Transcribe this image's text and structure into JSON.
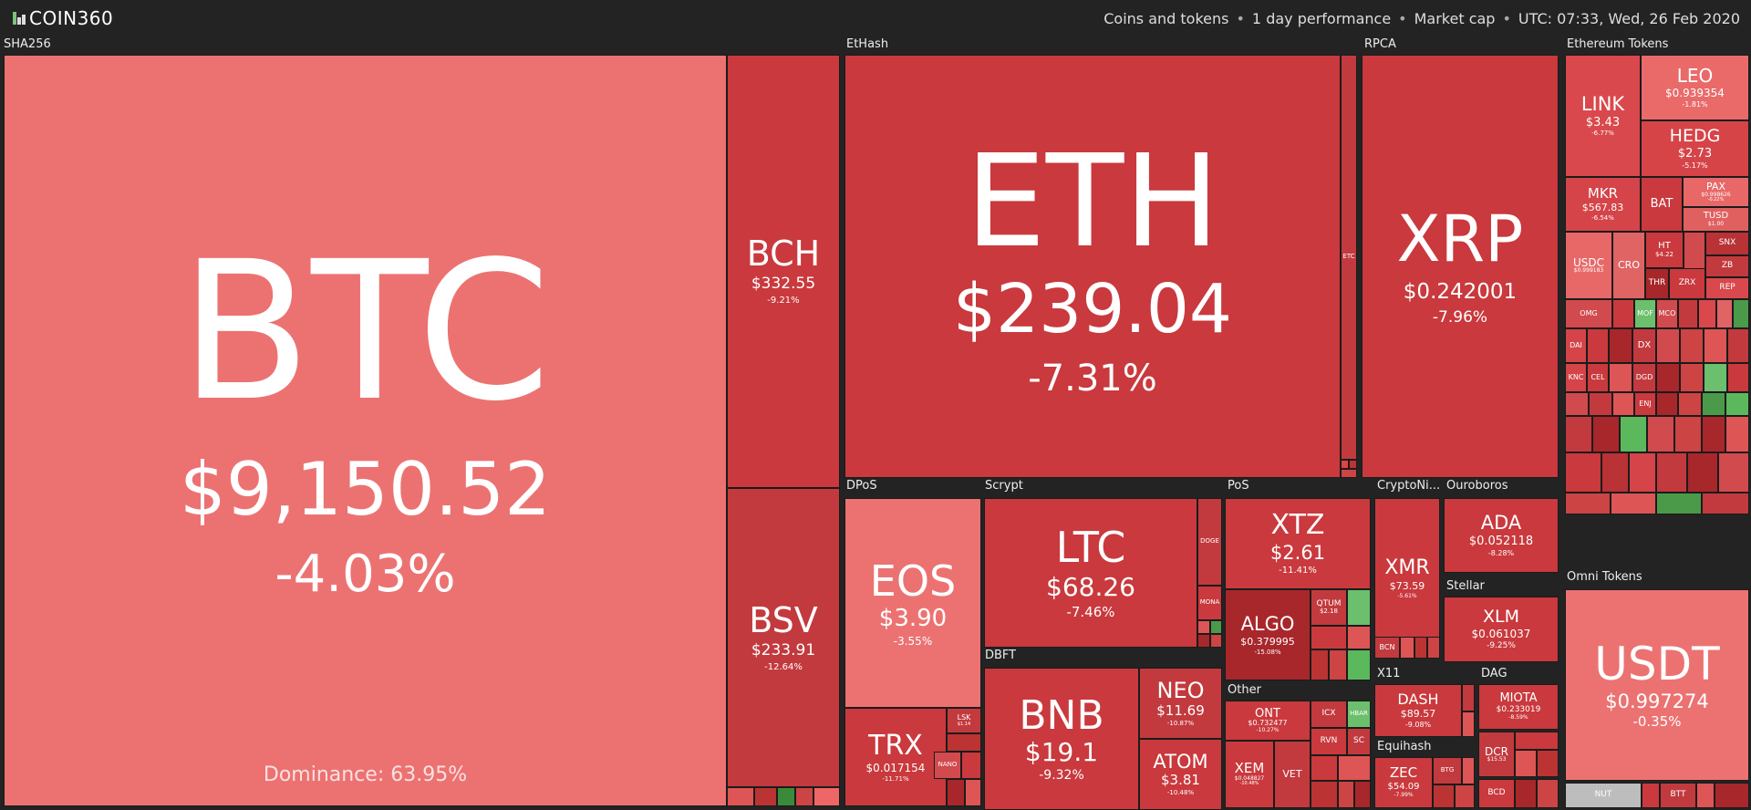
{
  "header": {
    "logo_text": "COIN360",
    "filter_coins": "Coins and tokens",
    "filter_period": "1 day performance",
    "filter_metric": "Market cap",
    "timestamp": "UTC: 07:33, Wed, 26 Feb 2020"
  },
  "sectors": {
    "sha256": "SHA256",
    "ethash": "EtHash",
    "rpca": "RPCA",
    "ethereum_tokens": "Ethereum Tokens",
    "dpos": "DPoS",
    "scrypt": "Scrypt",
    "pos": "PoS",
    "cryptonight": "CryptoNi...",
    "ouroboros": "Ouroboros",
    "stellar": "Stellar",
    "dbft": "DBFT",
    "other": "Other",
    "x11": "X11",
    "dag": "DAG",
    "equihash": "Equihash",
    "omni_tokens": "Omni Tokens"
  },
  "colors": {
    "bg": "#232323",
    "red_light": "#ec7272",
    "red_mid": "#d9484c",
    "red_dark": "#c23a3e",
    "red_deep": "#a8272b",
    "green": "#5cb85c"
  },
  "coins": {
    "btc": {
      "symbol": "BTC",
      "price": "$9,150.52",
      "change": "-4.03%",
      "dominance": "Dominance: 63.95%"
    },
    "bch": {
      "symbol": "BCH",
      "price": "$332.55",
      "change": "-9.21%"
    },
    "bsv": {
      "symbol": "BSV",
      "price": "$233.91",
      "change": "-12.64%"
    },
    "eth": {
      "symbol": "ETH",
      "price": "$239.04",
      "change": "-7.31%"
    },
    "etc": {
      "symbol": "ETC"
    },
    "xrp": {
      "symbol": "XRP",
      "price": "$0.242001",
      "change": "-7.96%"
    },
    "link": {
      "symbol": "LINK",
      "price": "$3.43",
      "change": "-6.77%"
    },
    "leo": {
      "symbol": "LEO",
      "price": "$0.939354",
      "change": "-1.81%"
    },
    "hedg": {
      "symbol": "HEDG",
      "price": "$2.73",
      "change": "-5.17%"
    },
    "mkr": {
      "symbol": "MKR",
      "price": "$567.83",
      "change": "-6.54%"
    },
    "bat": {
      "symbol": "BAT"
    },
    "pax": {
      "symbol": "PAX",
      "price": "$0.998626",
      "change": "-0.22%"
    },
    "tusd": {
      "symbol": "TUSD",
      "price": "$1.00"
    },
    "usdc": {
      "symbol": "USDC",
      "price": "$0.999183"
    },
    "cro": {
      "symbol": "CRO"
    },
    "ht": {
      "symbol": "HT",
      "price": "$4.22"
    },
    "snx": {
      "symbol": "SNX"
    },
    "zb": {
      "symbol": "ZB"
    },
    "thr": {
      "symbol": "THR"
    },
    "zrx": {
      "symbol": "ZRX"
    },
    "rep": {
      "symbol": "REP"
    },
    "omg": {
      "symbol": "OMG"
    },
    "mof": {
      "symbol": "MOF"
    },
    "mco": {
      "symbol": "MCO"
    },
    "dai": {
      "symbol": "DAI"
    },
    "dx": {
      "symbol": "DX"
    },
    "knc": {
      "symbol": "KNC"
    },
    "cel": {
      "symbol": "CEL"
    },
    "dgd": {
      "symbol": "DGD"
    },
    "enj": {
      "symbol": "ENJ"
    },
    "eos": {
      "symbol": "EOS",
      "price": "$3.90",
      "change": "-3.55%"
    },
    "trx": {
      "symbol": "TRX",
      "price": "$0.017154",
      "change": "-11.71%"
    },
    "lsk": {
      "symbol": "LSK",
      "price": "$1.14"
    },
    "nano": {
      "symbol": "NANO"
    },
    "ltc": {
      "symbol": "LTC",
      "price": "$68.26",
      "change": "-7.46%"
    },
    "doge": {
      "symbol": "DOGE"
    },
    "mona": {
      "symbol": "MONA"
    },
    "xtz": {
      "symbol": "XTZ",
      "price": "$2.61",
      "change": "-11.41%"
    },
    "algo": {
      "symbol": "ALGO",
      "price": "$0.379995",
      "change": "-15.08%"
    },
    "qtum": {
      "symbol": "QTUM",
      "price": "$2.18"
    },
    "xmr": {
      "symbol": "XMR",
      "price": "$73.59",
      "change": "-5.61%"
    },
    "bcn": {
      "symbol": "BCN"
    },
    "ada": {
      "symbol": "ADA",
      "price": "$0.052118",
      "change": "-8.28%"
    },
    "xlm": {
      "symbol": "XLM",
      "price": "$0.061037",
      "change": "-9.25%"
    },
    "bnb": {
      "symbol": "BNB",
      "price": "$19.1",
      "change": "-9.32%"
    },
    "neo": {
      "symbol": "NEO",
      "price": "$11.69",
      "change": "-10.87%"
    },
    "atom": {
      "symbol": "ATOM",
      "price": "$3.81",
      "change": "-10.48%"
    },
    "ont": {
      "symbol": "ONT",
      "price": "$0.732477",
      "change": "-10.27%"
    },
    "icx": {
      "symbol": "ICX"
    },
    "hbar": {
      "symbol": "HBAR"
    },
    "rvn": {
      "symbol": "RVN"
    },
    "sc": {
      "symbol": "SC"
    },
    "xem": {
      "symbol": "XEM",
      "price": "$0.048827",
      "change": "-10.48%"
    },
    "vet": {
      "symbol": "VET"
    },
    "dash": {
      "symbol": "DASH",
      "price": "$89.57",
      "change": "-9.08%"
    },
    "miota": {
      "symbol": "MIOTA",
      "price": "$0.233019",
      "change": "-8.59%"
    },
    "dcr": {
      "symbol": "DCR",
      "price": "$15.53"
    },
    "zec": {
      "symbol": "ZEC",
      "price": "$54.09",
      "change": "-7.99%"
    },
    "btg": {
      "symbol": "BTG"
    },
    "bcd": {
      "symbol": "BCD"
    },
    "usdt": {
      "symbol": "USDT",
      "price": "$0.997274",
      "change": "-0.35%"
    },
    "nut": {
      "symbol": "NUT"
    },
    "btt": {
      "symbol": "BTT"
    }
  }
}
